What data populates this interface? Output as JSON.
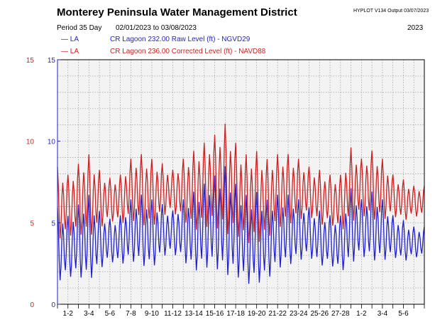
{
  "header": {
    "title": "Monterey Peninsula Water Management District",
    "hyplot_info": "HYPLOT V134  Output 03/07/2023",
    "period_label": "Period  35 Day",
    "period_range": "02/01/2023  to  03/08/2023",
    "year": "2023"
  },
  "legend": [
    {
      "marker": "— LA",
      "text": "CR Lagoon  232.00 Raw Level (ft) - NGVD29",
      "color": "#1f1fcc"
    },
    {
      "marker": "— LA",
      "text": "CR Lagoon  236.00 Corrected Level (ft) - NAVD88",
      "color": "#cc1f1f"
    }
  ],
  "chart_data": {
    "type": "line",
    "title": "Monterey Peninsula Water Management District",
    "xlabel": "",
    "ylabel": "",
    "ylim": [
      0,
      15
    ],
    "left_axis_ticks": [
      "0",
      "5",
      "10",
      "15"
    ],
    "right_axis_ticks": [
      "0",
      "5",
      "10",
      "15"
    ],
    "left_axis_color": "#cc1f1f",
    "right_axis_color": "#1f1fcc",
    "grid": true,
    "x_tick_labels": [
      "1-2",
      "3-4",
      "5-6",
      "7-8",
      "9-10",
      "11-12",
      "13-14",
      "15-16",
      "17-18",
      "19-20",
      "21-22",
      "23-24",
      "25-26",
      "27-28",
      "1-2",
      "3-4",
      "5-6"
    ],
    "series": [
      {
        "name": "CR Lagoon  232.00 Raw Level (ft) - NGVD29",
        "color": "#1f1fcc",
        "daily_min": [
          1.2,
          1.5,
          1.5,
          1.2,
          2.0,
          2.5,
          2.3,
          2.5,
          2.2,
          2.0,
          2.8,
          3.0,
          2.5,
          1.8,
          2.0,
          2.0,
          1.5,
          1.5,
          1.0,
          1.0,
          1.3,
          2.0,
          2.2,
          2.5,
          2.8,
          2.2,
          2.3,
          1.8,
          2.3,
          2.8,
          2.5,
          2.5,
          2.8,
          2.5,
          2.8
        ],
        "daily_max": [
          6.0,
          5.5,
          6.2,
          6.8,
          5.8,
          5.3,
          5.5,
          6.5,
          6.8,
          6.5,
          6.2,
          5.8,
          6.5,
          7.0,
          7.5,
          8.0,
          8.6,
          7.5,
          6.8,
          7.0,
          6.5,
          6.8,
          6.8,
          6.5,
          6.0,
          5.8,
          5.5,
          5.5,
          7.2,
          6.5,
          7.0,
          6.5,
          5.5,
          5.2,
          4.8
        ]
      },
      {
        "name": "CR Lagoon  236.00 Corrected Level (ft) - NAVD88",
        "color": "#cc1f1f",
        "daily_min": [
          3.8,
          4.0,
          4.1,
          3.9,
          4.5,
          5.0,
          4.8,
          5.0,
          4.7,
          4.5,
          5.3,
          5.5,
          5.0,
          4.3,
          4.5,
          4.5,
          4.0,
          4.0,
          3.5,
          3.5,
          3.8,
          4.5,
          4.7,
          5.0,
          5.3,
          4.7,
          4.8,
          4.3,
          4.8,
          5.3,
          5.0,
          5.0,
          5.3,
          5.0,
          5.3
        ],
        "daily_max": [
          8.5,
          8.0,
          8.7,
          9.3,
          8.3,
          7.8,
          8.0,
          9.0,
          9.3,
          9.0,
          8.7,
          8.3,
          9.0,
          9.5,
          10.0,
          10.5,
          11.2,
          10.0,
          9.3,
          9.5,
          9.0,
          9.3,
          9.3,
          9.0,
          8.5,
          8.3,
          8.0,
          8.0,
          9.7,
          9.0,
          9.5,
          9.0,
          8.0,
          7.7,
          7.3
        ]
      }
    ]
  }
}
